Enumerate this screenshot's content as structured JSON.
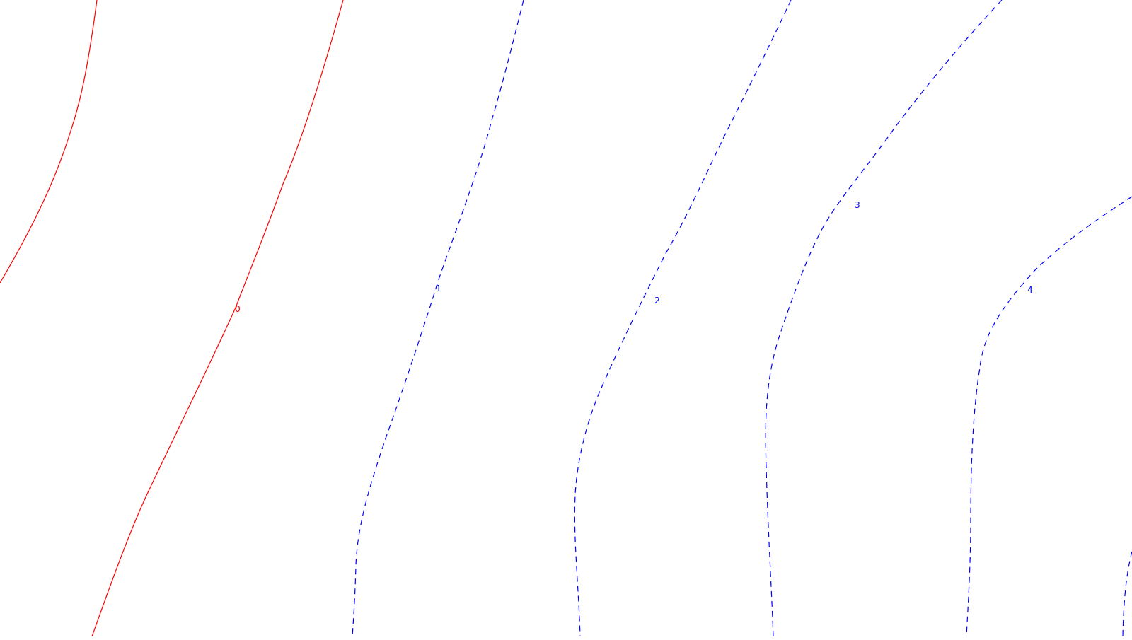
{
  "map": {
    "type": "contour-map",
    "colors": {
      "background": "#ffffff",
      "zero_contour": "#ff0000",
      "positive_contour": "#0000ff"
    },
    "contours": [
      {
        "level": "0",
        "style": "solid",
        "color": "#ff0000"
      },
      {
        "level": "",
        "style": "solid",
        "color": "#ff0000"
      },
      {
        "level": "1",
        "style": "dashed",
        "color": "#0000ff"
      },
      {
        "level": "2",
        "style": "dashed",
        "color": "#0000ff"
      },
      {
        "level": "3",
        "style": "dashed",
        "color": "#0000ff"
      },
      {
        "level": "4",
        "style": "dashed",
        "color": "#0000ff"
      },
      {
        "level": "",
        "style": "dashed",
        "color": "#0000ff"
      }
    ]
  }
}
